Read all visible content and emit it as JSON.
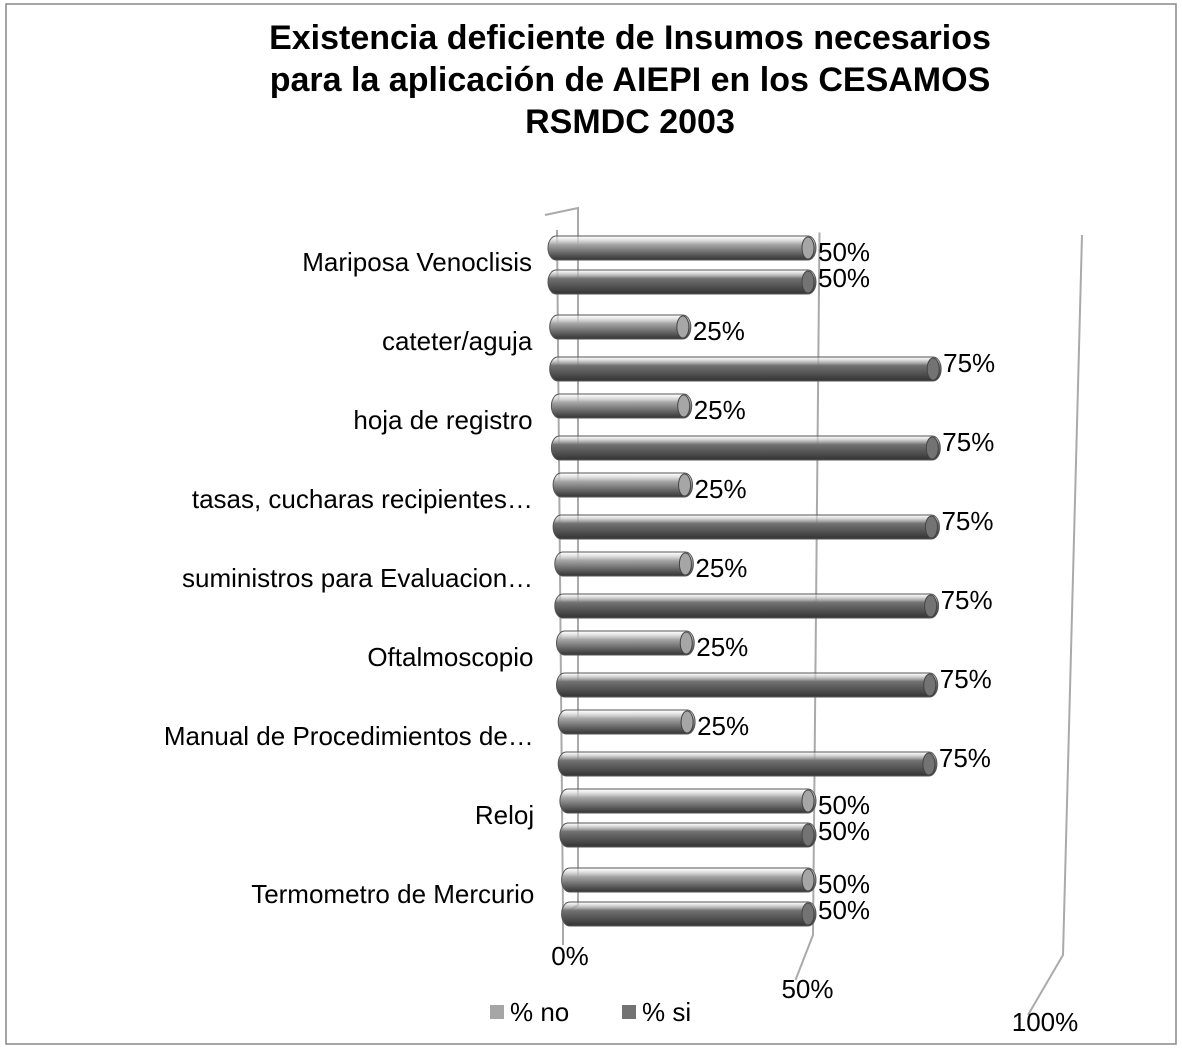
{
  "chart_data": {
    "type": "bar3d",
    "title": [
      "Existencia deficiente de Insumos  necesarios",
      "para la aplicación de AIEPI en los  CESAMOS",
      "RSMDC 2003"
    ],
    "categories": [
      "Mariposa Venoclisis",
      "cateter/aguja",
      "hoja de registro",
      "tasas, cucharas recipientes…",
      "suministros para Evaluacion…",
      "Oftalmoscopio",
      "Manual de Procedimientos de…",
      "Reloj",
      "Termometro de Mercurio"
    ],
    "series": [
      {
        "name": "% no",
        "color": "#a6a6a6",
        "values": [
          50,
          25,
          25,
          25,
          25,
          25,
          25,
          50,
          50
        ],
        "value_labels": [
          "50%",
          "25%",
          "25%",
          "25%",
          "25%",
          "25%",
          "25%",
          "50%",
          "50%"
        ]
      },
      {
        "name": "% si",
        "color": "#737373",
        "values": [
          50,
          75,
          75,
          75,
          75,
          75,
          75,
          50,
          50
        ],
        "value_labels": [
          "50%",
          "75%",
          "75%",
          "75%",
          "75%",
          "75%",
          "75%",
          "50%",
          "50%"
        ]
      }
    ],
    "xlim": [
      0,
      100
    ],
    "xticks": [
      {
        "value": 0,
        "label": "0%"
      },
      {
        "value": 50,
        "label": "50%"
      },
      {
        "value": 100,
        "label": "100%"
      }
    ],
    "legend": "bottom"
  }
}
